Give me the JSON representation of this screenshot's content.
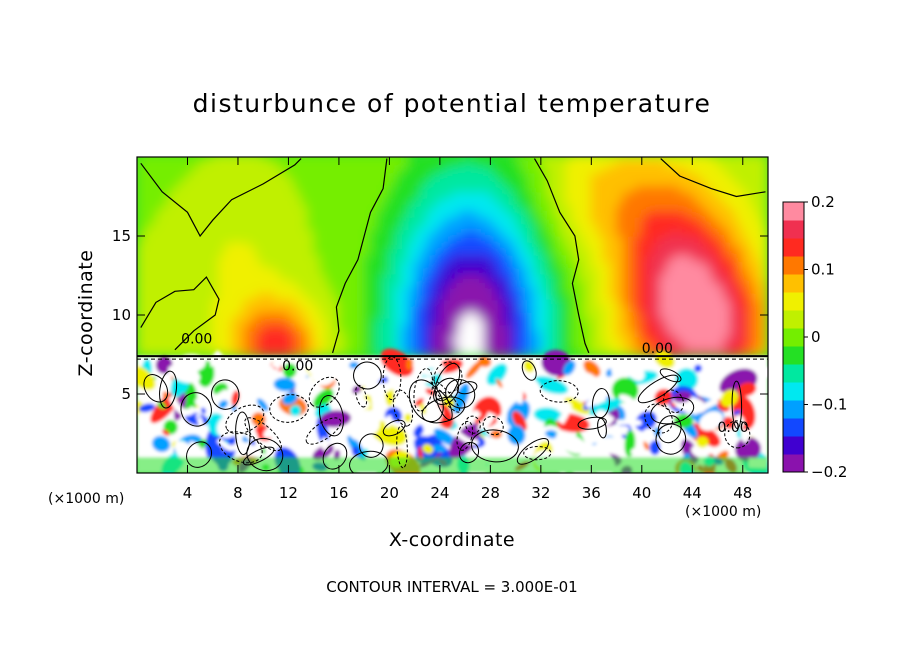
{
  "chart_data": {
    "type": "heatmap",
    "title": "disturbunce of potential temperature",
    "xlabel": "X-coordinate",
    "ylabel": "Z-coordinate",
    "x_unit": "(×1000 m)",
    "y_unit": "(×1000 m)",
    "xlim": [
      0,
      50
    ],
    "ylim": [
      0,
      20
    ],
    "x_ticks": [
      4,
      8,
      12,
      16,
      20,
      24,
      28,
      32,
      36,
      40,
      44,
      48
    ],
    "y_ticks": [
      5,
      10,
      15
    ],
    "colorbar": {
      "range": [
        -0.2,
        0.2
      ],
      "tick_values": [
        0.2,
        0.1,
        0,
        -0.1,
        -0.2
      ],
      "tick_labels": [
        "0.2",
        "0.1",
        "0",
        "−0.1",
        "−0.2"
      ],
      "colors": [
        "#8a12ad",
        "#4000d0",
        "#1248ff",
        "#00a0ff",
        "#00e8f0",
        "#00e8a0",
        "#24e024",
        "#74ee00",
        "#c0f000",
        "#f0f000",
        "#ffc000",
        "#ff7800",
        "#ff2a20",
        "#f03050",
        "#ff8aa0"
      ]
    },
    "contour_label": "0.00",
    "contour_interval_text": "CONTOUR INTERVAL = 3.000E-01",
    "upper_layer": {
      "boundary_z": 7.4,
      "cold_anomaly": {
        "x_center": 26.5,
        "z_peak": 8.3,
        "min_value": -0.2
      },
      "warm_anomalies": [
        {
          "x_center": 43.5,
          "z_peak": 11,
          "max_value": 0.17
        },
        {
          "x_center": 11,
          "z_peak": 8,
          "max_value": 0.12
        }
      ],
      "zero_contour_x": [
        3,
        15.5,
        18,
        35,
        39
      ]
    },
    "lower_layer": {
      "description": "turbulent mixed layer below z = 7.4"
    }
  }
}
